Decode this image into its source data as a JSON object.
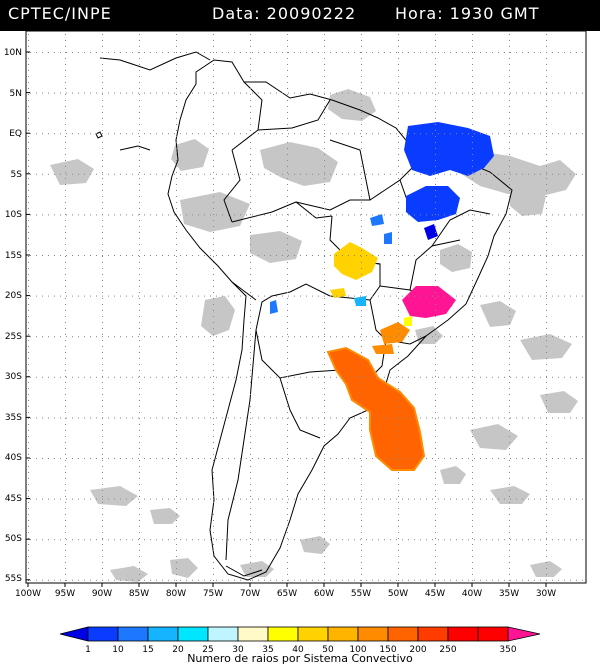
{
  "header": {
    "agency": "CPTEC/INPE",
    "date": "Data: 20090222",
    "time": "Hora: 1930 GMT"
  },
  "map": {
    "lat_labels": [
      "10N",
      "5N",
      "EQ",
      "5S",
      "10S",
      "15S",
      "20S",
      "25S",
      "30S",
      "35S",
      "40S",
      "45S",
      "50S",
      "55S"
    ],
    "lon_labels": [
      "100W",
      "95W",
      "90W",
      "85W",
      "80W",
      "75W",
      "70W",
      "65W",
      "60W",
      "55W",
      "50W",
      "45W",
      "40W",
      "35W",
      "30W"
    ],
    "cloud_color": "#c4c4c4",
    "outline_color": "#000000"
  },
  "legend": {
    "values": [
      "1",
      "10",
      "15",
      "20",
      "25",
      "30",
      "35",
      "40",
      "50",
      "100",
      "150",
      "200",
      "250",
      "350"
    ],
    "colors": [
      "#0000e6",
      "#0a3cff",
      "#1e78ff",
      "#14b4ff",
      "#00e6ff",
      "#bff5ff",
      "#fffac8",
      "#ffff00",
      "#ffd200",
      "#ffb400",
      "#ff8c00",
      "#ff6400",
      "#ff3c00",
      "#ff0000",
      "#ff1493"
    ],
    "caption": "Numero de raios por Sistema Convectivo"
  }
}
